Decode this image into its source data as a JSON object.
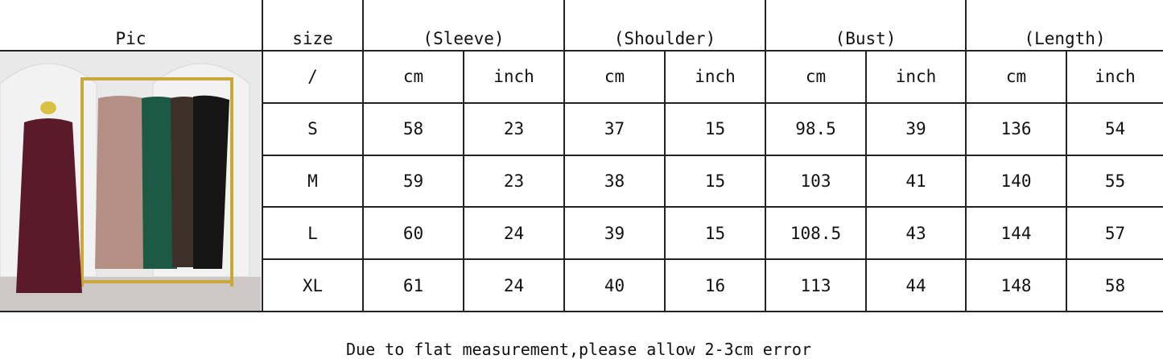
{
  "header": {
    "pic": "Pic",
    "size": "size",
    "groups": [
      "(Sleeve)",
      "(Shoulder)",
      "(Bust)",
      "(Length)"
    ]
  },
  "units": {
    "size": "/",
    "cols": [
      "cm",
      "inch",
      "cm",
      "inch",
      "cm",
      "inch",
      "cm",
      "inch"
    ]
  },
  "rows": [
    {
      "size": "S",
      "values": [
        "58",
        "23",
        "37",
        "15",
        "98.5",
        "39",
        "136",
        "54"
      ]
    },
    {
      "size": "M",
      "values": [
        "59",
        "23",
        "38",
        "15",
        "103",
        "41",
        "140",
        "55"
      ]
    },
    {
      "size": "L",
      "values": [
        "60",
        "24",
        "39",
        "15",
        "108.5",
        "43",
        "144",
        "57"
      ]
    },
    {
      "size": "XL",
      "values": [
        "61",
        "24",
        "40",
        "16",
        "113",
        "44",
        "148",
        "58"
      ]
    }
  ],
  "footer": "Due to flat measurement,please allow 2-3cm error"
}
